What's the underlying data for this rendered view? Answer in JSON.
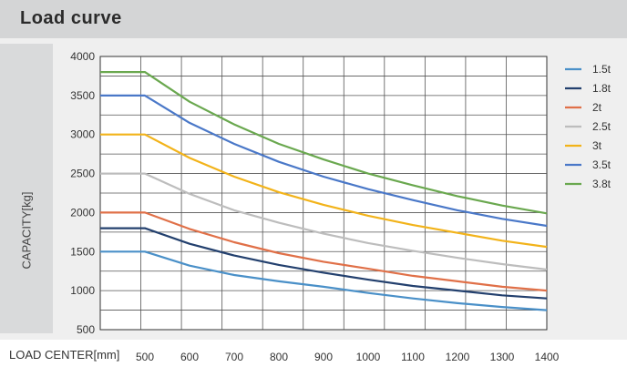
{
  "header": {
    "title": "Load curve"
  },
  "chart_data": {
    "type": "line",
    "title": "Load curve",
    "ylabel": "CAPACITY[kg]",
    "xlabel": "LOAD CENTER[mm]",
    "x_ticks": [
      500,
      600,
      700,
      800,
      900,
      1000,
      1100,
      1200,
      1300,
      1400
    ],
    "y_ticks": [
      500,
      1000,
      1500,
      2000,
      2500,
      3000,
      3500,
      4000
    ],
    "xlim": [
      400,
      1400
    ],
    "ylim": [
      500,
      4000
    ],
    "grid": true,
    "legend": "right",
    "x": [
      400,
      500,
      600,
      700,
      800,
      900,
      1000,
      1100,
      1200,
      1300,
      1400
    ],
    "series": [
      {
        "name": "1.5t",
        "color": "#4a90c8",
        "values": [
          1500,
          1500,
          1320,
          1200,
          1120,
          1050,
          970,
          900,
          840,
          790,
          750
        ]
      },
      {
        "name": "1.8t",
        "color": "#23406e",
        "values": [
          1800,
          1800,
          1600,
          1450,
          1330,
          1230,
          1140,
          1060,
          1000,
          940,
          900
        ]
      },
      {
        "name": "2t",
        "color": "#e07048",
        "values": [
          2000,
          2000,
          1790,
          1620,
          1480,
          1370,
          1280,
          1190,
          1120,
          1050,
          1000
        ]
      },
      {
        "name": "2.5t",
        "color": "#bdbdbd",
        "values": [
          2500,
          2500,
          2240,
          2030,
          1870,
          1730,
          1610,
          1510,
          1420,
          1340,
          1270
        ]
      },
      {
        "name": "3t",
        "color": "#f2b31a",
        "values": [
          3000,
          3000,
          2700,
          2460,
          2260,
          2100,
          1960,
          1840,
          1740,
          1640,
          1560
        ]
      },
      {
        "name": "3.5t",
        "color": "#4a78c8",
        "values": [
          3500,
          3500,
          3150,
          2880,
          2650,
          2460,
          2300,
          2160,
          2030,
          1920,
          1830
        ]
      },
      {
        "name": "3.8t",
        "color": "#6aa84f",
        "values": [
          3800,
          3800,
          3420,
          3130,
          2880,
          2680,
          2500,
          2350,
          2210,
          2090,
          1990
        ]
      }
    ]
  }
}
